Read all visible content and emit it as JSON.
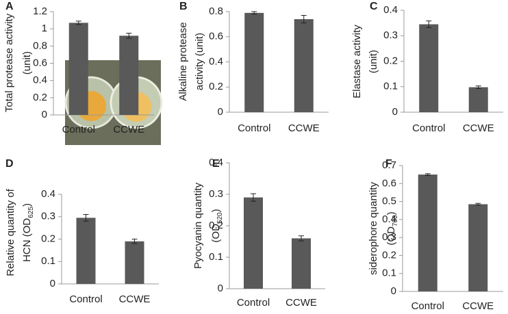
{
  "chart_data": [
    {
      "type": "bar",
      "panel": "A",
      "ylabel_lines": [
        [
          {
            "text": "Total protease activity"
          }
        ],
        [
          {
            "text": "(unit)"
          }
        ]
      ],
      "categories": [
        "Control",
        "CCWE"
      ],
      "values": [
        1.07,
        0.92
      ],
      "errors": [
        0.02,
        0.03
      ],
      "color": "#595959",
      "ylim": [
        0,
        1.2
      ],
      "yticks": [
        0,
        0.2,
        0.4,
        0.6,
        0.8,
        1,
        1.2
      ]
    },
    {
      "type": "bar",
      "panel": "B",
      "ylabel_lines": [
        [
          {
            "text": "Alkaline protease"
          }
        ],
        [
          {
            "text": "activity (unit)"
          }
        ]
      ],
      "categories": [
        "Control",
        "CCWE"
      ],
      "values": [
        0.79,
        0.74
      ],
      "errors": [
        0.01,
        0.03
      ],
      "color": "#595959",
      "ylim": [
        0,
        0.8
      ],
      "yticks": [
        0,
        0.2,
        0.4,
        0.6,
        0.8
      ]
    },
    {
      "type": "bar",
      "panel": "C",
      "ylabel_lines": [
        [
          {
            "text": "Elastase activity"
          }
        ],
        [
          {
            "text": "(unit)"
          }
        ]
      ],
      "categories": [
        "Control",
        "CCWE"
      ],
      "values": [
        0.345,
        0.098
      ],
      "errors": [
        0.013,
        0.005
      ],
      "color": "#595959",
      "ylim": [
        0,
        0.4
      ],
      "yticks": [
        0,
        0.1,
        0.2,
        0.3,
        0.4
      ]
    },
    {
      "type": "bar",
      "panel": "D",
      "ylabel_lines": [
        [
          {
            "text": "Relative quantity of"
          }
        ],
        [
          {
            "text": "HCN (OD"
          },
          {
            "text": "625",
            "sub": true
          },
          {
            "text": ")"
          }
        ]
      ],
      "categories": [
        "Control",
        "CCWE"
      ],
      "values": [
        0.295,
        0.19
      ],
      "errors": [
        0.015,
        0.01
      ],
      "color": "#595959",
      "ylim": [
        0,
        0.4
      ],
      "yticks": [
        0,
        0.1,
        0.2,
        0.3,
        0.4
      ]
    },
    {
      "type": "bar",
      "panel": "E",
      "ylabel_lines": [
        [
          {
            "text": "Pyocyanin quantity"
          }
        ],
        [
          {
            "text": "(OD"
          },
          {
            "text": "520",
            "sub": true
          },
          {
            "text": ")"
          }
        ]
      ],
      "categories": [
        "Control",
        "CCWE"
      ],
      "values": [
        0.29,
        0.16
      ],
      "errors": [
        0.012,
        0.008
      ],
      "color": "#595959",
      "ylim": [
        0,
        0.4
      ],
      "yticks": [
        0,
        0.1,
        0.2,
        0.3,
        0.4
      ]
    },
    {
      "type": "bar",
      "panel": "F",
      "ylabel_lines": [
        [
          {
            "text": "siderophore quantity"
          }
        ],
        [
          {
            "text": "(OD"
          },
          {
            "text": "700",
            "sub": true
          },
          {
            "text": ")"
          }
        ]
      ],
      "categories": [
        "Control",
        "CCWE"
      ],
      "values": [
        0.65,
        0.485
      ],
      "errors": [
        0.005,
        0.005
      ],
      "color": "#595959",
      "ylim": [
        0,
        0.7
      ],
      "yticks": [
        0,
        0.1,
        0.2,
        0.3,
        0.4,
        0.5,
        0.6,
        0.7
      ]
    }
  ]
}
